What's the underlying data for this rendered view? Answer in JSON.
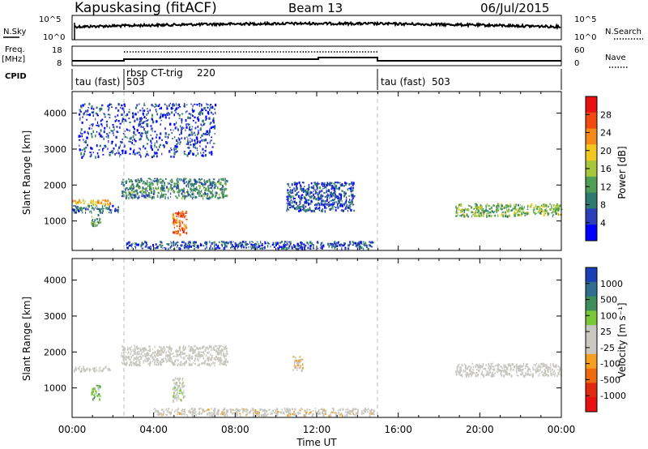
{
  "header": {
    "station": "Kapuskasing (fitACF)",
    "beam": "Beam 13",
    "date": "06/Jul/2015"
  },
  "strips": {
    "nsky_label": "N.Sky",
    "nsky_ticks": [
      "10^5",
      "10^0"
    ],
    "nsearch_label": "N.Search",
    "nsearch_ticks": [
      "10^5",
      "10^0"
    ],
    "freq_label": "Freq.",
    "freq_unit": "[MHz]",
    "freq_ticks": [
      "18",
      "8"
    ],
    "nave_label": "Nave",
    "nave_ticks": [
      "60",
      "0"
    ],
    "cpid_label": "CPID",
    "cpid_segments": [
      {
        "name": "tau (fast)",
        "id": "503",
        "start_h": 0,
        "end_h": 2.4
      },
      {
        "name": "rbsp CT-trig",
        "id": "220",
        "start_h": 2.4,
        "end_h": 15.0
      },
      {
        "name": "tau (fast)",
        "id": "503",
        "start_h": 15.0,
        "end_h": 24
      }
    ]
  },
  "axes": {
    "xlabel": "Time UT",
    "x_ticks": [
      "00:00",
      "04:00",
      "08:00",
      "12:00",
      "16:00",
      "20:00",
      "00:00"
    ],
    "ylabel": "Slant Range [km]",
    "y_ticks": [
      "1000",
      "2000",
      "3000",
      "4000"
    ]
  },
  "power_scale": {
    "label": "Power [dB]",
    "ticks": [
      "28",
      "24",
      "20",
      "16",
      "12",
      "8",
      "4"
    ],
    "colors": [
      "#0000ff",
      "#2a3fb8",
      "#2f7a6e",
      "#4f9e55",
      "#a8c83c",
      "#f2c81e",
      "#f58a18",
      "#f04a10",
      "#e81010"
    ]
  },
  "velocity_scale": {
    "label": "Velocity [m s⁻¹]",
    "ticks": [
      "1000",
      "500",
      "100",
      "25",
      "-25",
      "-100",
      "-500",
      "-1000"
    ],
    "colors": [
      "#1d3fb5",
      "#2f6e8e",
      "#3d8e5a",
      "#7ac83a",
      "#c8c8c0",
      "#c8c8c0",
      "#f5a020",
      "#f06a10",
      "#e02a10",
      "#e81010"
    ]
  },
  "chart_data": [
    {
      "type": "heatmap",
      "title": "Power",
      "xlabel": "Time UT",
      "ylabel": "Slant Range [km]",
      "xlim": [
        0,
        24
      ],
      "ylim": [
        180,
        4600
      ],
      "colorbar": "Power [dB]",
      "clim": [
        0,
        32
      ],
      "regions": [
        {
          "t0": 0.0,
          "t1": 1.9,
          "r0": 1480,
          "r1": 1620,
          "value": 22
        },
        {
          "t0": 0.0,
          "t1": 2.3,
          "r0": 1250,
          "r1": 1450,
          "value": 8
        },
        {
          "t0": 0.9,
          "t1": 1.4,
          "r0": 900,
          "r1": 1200,
          "value": 12
        },
        {
          "t0": 2.4,
          "t1": 7.6,
          "r0": 1650,
          "r1": 2200,
          "value": 10
        },
        {
          "t0": 4.9,
          "t1": 5.6,
          "r0": 650,
          "r1": 1300,
          "value": 26
        },
        {
          "t0": 2.6,
          "t1": 14.8,
          "r0": 250,
          "r1": 450,
          "value": 6
        },
        {
          "t0": 10.5,
          "t1": 13.8,
          "r0": 1300,
          "r1": 2100,
          "value": 6
        },
        {
          "t0": 18.8,
          "t1": 24,
          "r0": 1150,
          "r1": 1500,
          "value": 14
        },
        {
          "t0": 0.3,
          "t1": 7.0,
          "r0": 2800,
          "r1": 4300,
          "value": 5
        }
      ]
    },
    {
      "type": "heatmap",
      "title": "Velocity",
      "xlabel": "Time UT",
      "ylabel": "Slant Range [km]",
      "xlim": [
        0,
        24
      ],
      "ylim": [
        180,
        4600
      ],
      "colorbar": "Velocity [m s⁻¹]",
      "clim": [
        -1000,
        1000
      ],
      "regions": [
        {
          "t0": 0.0,
          "t1": 1.9,
          "r0": 1480,
          "r1": 1620,
          "value": 0
        },
        {
          "t0": 2.4,
          "t1": 7.6,
          "r0": 1650,
          "r1": 2200,
          "value": 0
        },
        {
          "t0": 0.9,
          "t1": 1.4,
          "r0": 700,
          "r1": 1100,
          "value": 300
        },
        {
          "t0": 4.9,
          "t1": 5.5,
          "r0": 650,
          "r1": 1300,
          "value": 120
        },
        {
          "t0": 10.8,
          "t1": 11.3,
          "r0": 1500,
          "r1": 1900,
          "value": -200
        },
        {
          "t0": 4.0,
          "t1": 14.8,
          "r0": 250,
          "r1": 450,
          "value": -80
        },
        {
          "t0": 18.8,
          "t1": 24,
          "r0": 1350,
          "r1": 1700,
          "value": 0
        }
      ]
    }
  ]
}
